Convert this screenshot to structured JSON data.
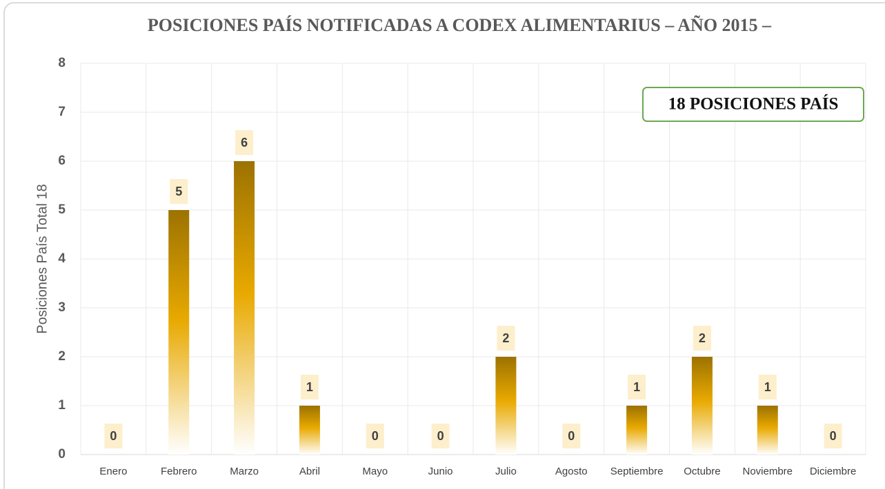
{
  "chart_data": {
    "type": "bar",
    "title": "POSICIONES PAÍS NOTIFICADAS A CODEX ALIMENTARIUS – AÑO 2015 –",
    "y_label": "Posiciones País Total 18",
    "annotation": "18 POSICIONES PAÍS",
    "categories": [
      "Enero",
      "Febrero",
      "Marzo",
      "Abril",
      "Mayo",
      "Junio",
      "Julio",
      "Agosto",
      "Septiembre",
      "Octubre",
      "Noviembre",
      "Diciembre"
    ],
    "values": [
      0,
      5,
      6,
      1,
      0,
      0,
      2,
      0,
      1,
      2,
      1,
      0
    ],
    "color": "#e8a900",
    "ylim": [
      0,
      8
    ],
    "yticks": [
      0,
      1,
      2,
      3,
      4,
      5,
      6,
      7,
      8
    ],
    "grid": true
  }
}
